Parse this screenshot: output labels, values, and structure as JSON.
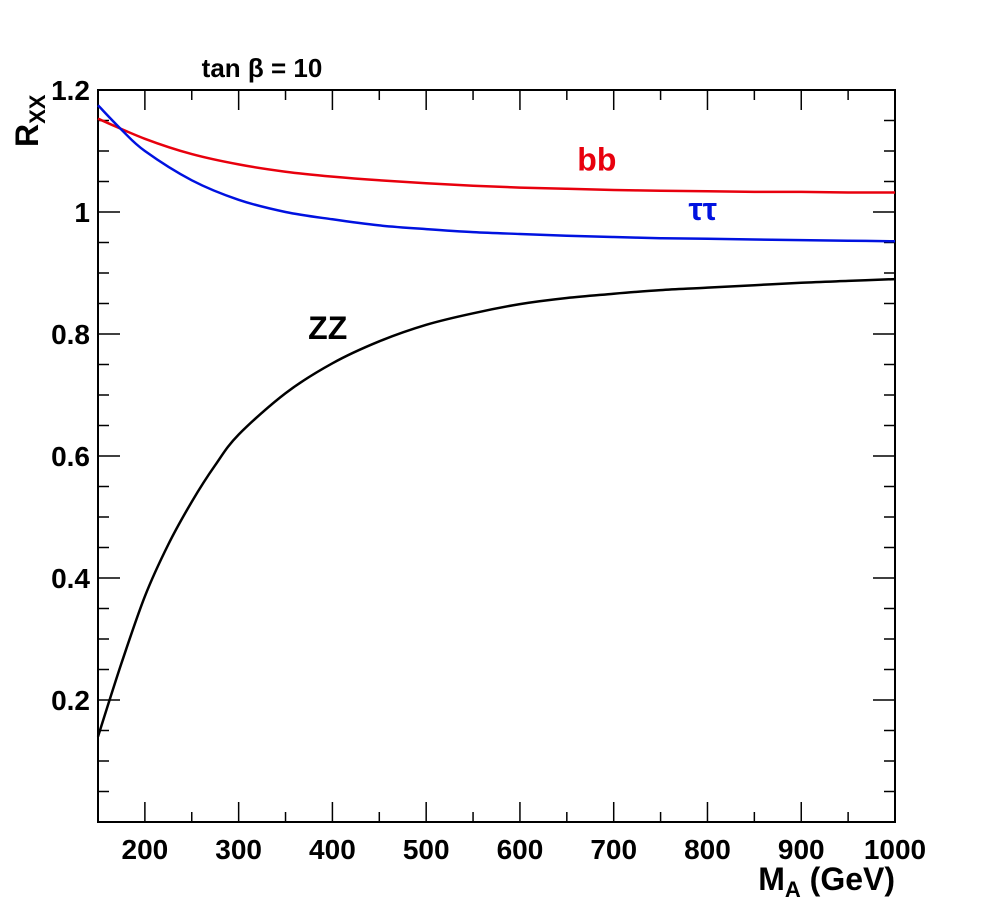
{
  "chart_data": {
    "type": "line",
    "title": "tan β = 10",
    "xlabel": {
      "main": "M",
      "sub": "A",
      "suffix": " (GeV)"
    },
    "ylabel": {
      "main": "R",
      "sub": "XX"
    },
    "xlim": [
      150,
      1000
    ],
    "ylim": [
      0.0,
      1.2
    ],
    "x_ticks": [
      200,
      300,
      400,
      500,
      600,
      700,
      800,
      900,
      1000
    ],
    "y_ticks": [
      0.2,
      0.4,
      0.6,
      0.8,
      1,
      1.2
    ],
    "y_tick_labels": [
      "0.2",
      "0.4",
      "0.6",
      "0.8",
      "1",
      "1.2"
    ],
    "grid": false,
    "series": [
      {
        "name": "bb",
        "color": "#e8000d",
        "x": [
          150,
          200,
          250,
          300,
          350,
          400,
          450,
          500,
          550,
          600,
          650,
          700,
          750,
          800,
          850,
          900,
          950,
          1000
        ],
        "y": [
          1.153,
          1.12,
          1.095,
          1.078,
          1.066,
          1.058,
          1.052,
          1.047,
          1.043,
          1.04,
          1.038,
          1.036,
          1.035,
          1.034,
          1.033,
          1.033,
          1.032,
          1.032
        ]
      },
      {
        "name": "ττ",
        "color": "#0012e0",
        "x": [
          150,
          175,
          200,
          250,
          300,
          350,
          400,
          450,
          500,
          550,
          600,
          650,
          700,
          750,
          800,
          850,
          900,
          950,
          1000
        ],
        "y": [
          1.175,
          1.135,
          1.1,
          1.052,
          1.02,
          1.0,
          0.988,
          0.978,
          0.972,
          0.967,
          0.964,
          0.961,
          0.959,
          0.957,
          0.956,
          0.955,
          0.954,
          0.953,
          0.952
        ]
      },
      {
        "name": "ZZ",
        "color": "#000000",
        "x": [
          150,
          175,
          200,
          225,
          250,
          275,
          300,
          350,
          400,
          450,
          500,
          550,
          600,
          650,
          700,
          750,
          800,
          850,
          900,
          950,
          1000
        ],
        "y": [
          0.14,
          0.26,
          0.37,
          0.455,
          0.525,
          0.585,
          0.635,
          0.703,
          0.752,
          0.788,
          0.815,
          0.834,
          0.849,
          0.859,
          0.866,
          0.872,
          0.876,
          0.88,
          0.884,
          0.887,
          0.89
        ]
      }
    ],
    "annotations": [
      {
        "text": "bb",
        "x": 682,
        "y": 1.068,
        "color": "#e8000d"
      },
      {
        "text": "ττ",
        "x": 795,
        "y": 0.987,
        "color": "#0012e0"
      },
      {
        "text": "ZZ",
        "x": 395,
        "y": 0.792,
        "color": "#000000"
      }
    ]
  }
}
